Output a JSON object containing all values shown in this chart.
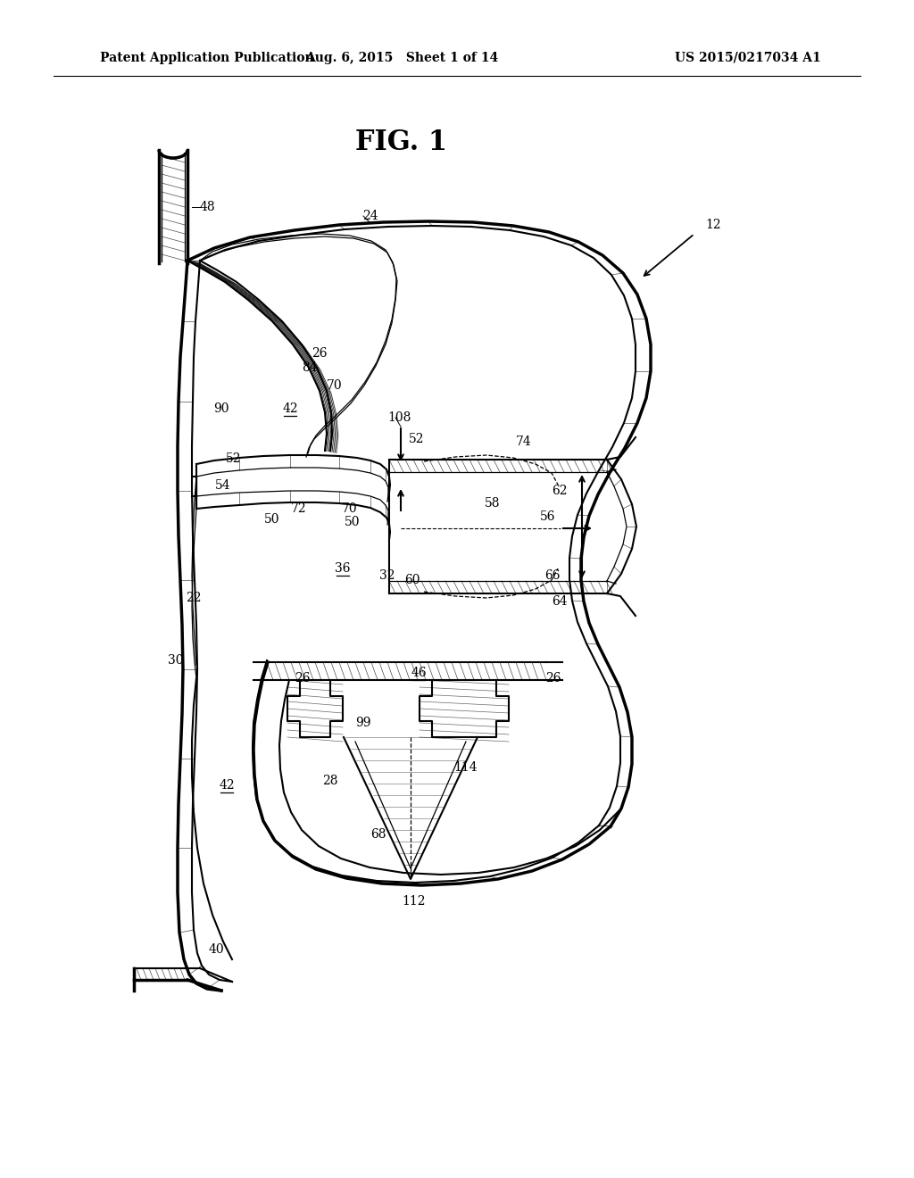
{
  "bg_color": "#ffffff",
  "title": "FIG. 1",
  "header_left": "Patent Application Publication",
  "header_mid": "Aug. 6, 2015   Sheet 1 of 14",
  "header_right": "US 2015/0217034 A1",
  "lw_thick": 2.5,
  "lw_med": 1.5,
  "lw_thin": 0.9,
  "lw_hatch": 0.5,
  "label_fontsize": 10,
  "title_fontsize": 22,
  "header_fontsize": 10,
  "labels": [
    [
      "48",
      232,
      232,
      false
    ],
    [
      "24",
      415,
      242,
      false
    ],
    [
      "84",
      347,
      412,
      false
    ],
    [
      "70",
      375,
      432,
      false
    ],
    [
      "42",
      325,
      458,
      true
    ],
    [
      "90",
      248,
      458,
      false
    ],
    [
      "26",
      358,
      396,
      false
    ],
    [
      "108",
      447,
      468,
      false
    ],
    [
      "52",
      262,
      514,
      false
    ],
    [
      "52",
      467,
      492,
      false
    ],
    [
      "54",
      250,
      544,
      false
    ],
    [
      "74",
      587,
      495,
      false
    ],
    [
      "72",
      335,
      570,
      false
    ],
    [
      "50",
      305,
      582,
      false
    ],
    [
      "70",
      392,
      570,
      false
    ],
    [
      "50",
      395,
      585,
      false
    ],
    [
      "58",
      552,
      564,
      false
    ],
    [
      "56",
      614,
      579,
      false
    ],
    [
      "62",
      627,
      550,
      false
    ],
    [
      "36",
      384,
      637,
      true
    ],
    [
      "32",
      434,
      645,
      false
    ],
    [
      "60",
      462,
      650,
      false
    ],
    [
      "66",
      619,
      645,
      false
    ],
    [
      "64",
      627,
      674,
      false
    ],
    [
      "22",
      217,
      670,
      false
    ],
    [
      "30",
      197,
      740,
      false
    ],
    [
      "46",
      469,
      754,
      true
    ],
    [
      "26",
      339,
      760,
      false
    ],
    [
      "26",
      620,
      760,
      false
    ],
    [
      "99",
      407,
      810,
      false
    ],
    [
      "28",
      370,
      875,
      false
    ],
    [
      "42",
      254,
      880,
      true
    ],
    [
      "114",
      522,
      860,
      false
    ],
    [
      "68",
      424,
      935,
      false
    ],
    [
      "112",
      464,
      1010,
      false
    ],
    [
      "40",
      242,
      1064,
      false
    ]
  ]
}
